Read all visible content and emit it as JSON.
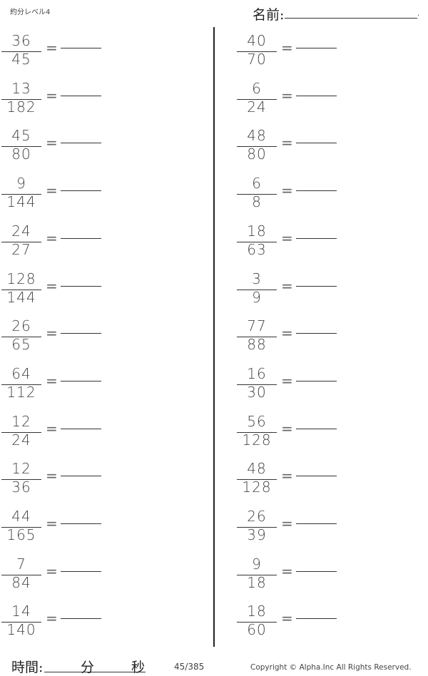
{
  "header": {
    "title": "約分レベル4",
    "name_label": "名前:"
  },
  "left": [
    {
      "n": "36",
      "d": "45"
    },
    {
      "n": "13",
      "d": "182"
    },
    {
      "n": "45",
      "d": "80"
    },
    {
      "n": "9",
      "d": "144"
    },
    {
      "n": "24",
      "d": "27"
    },
    {
      "n": "128",
      "d": "144"
    },
    {
      "n": "26",
      "d": "65"
    },
    {
      "n": "64",
      "d": "112"
    },
    {
      "n": "12",
      "d": "24"
    },
    {
      "n": "12",
      "d": "36"
    },
    {
      "n": "44",
      "d": "165"
    },
    {
      "n": "7",
      "d": "84"
    },
    {
      "n": "14",
      "d": "140"
    }
  ],
  "right": [
    {
      "n": "40",
      "d": "70"
    },
    {
      "n": "6",
      "d": "24"
    },
    {
      "n": "48",
      "d": "80"
    },
    {
      "n": "6",
      "d": "8"
    },
    {
      "n": "18",
      "d": "63"
    },
    {
      "n": "3",
      "d": "9"
    },
    {
      "n": "77",
      "d": "88"
    },
    {
      "n": "16",
      "d": "30"
    },
    {
      "n": "56",
      "d": "128"
    },
    {
      "n": "48",
      "d": "128"
    },
    {
      "n": "26",
      "d": "39"
    },
    {
      "n": "9",
      "d": "18"
    },
    {
      "n": "18",
      "d": "60"
    }
  ],
  "equals": "=",
  "footer": {
    "time_label": "時間:",
    "minutes": "分",
    "seconds": "秒",
    "page": "45/385",
    "copyright": "Copyright ©  Alpha.Inc All Rights Reserved."
  }
}
